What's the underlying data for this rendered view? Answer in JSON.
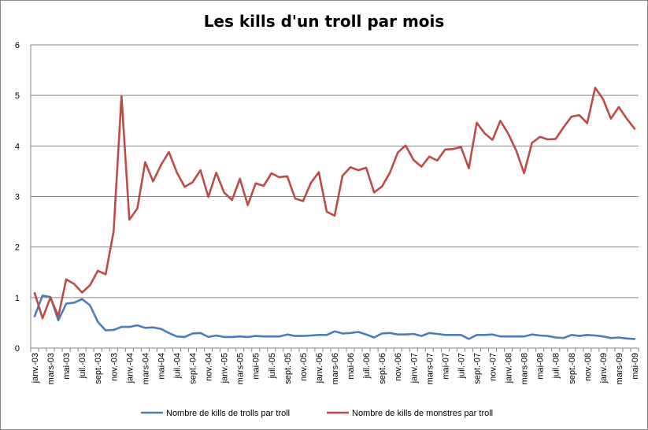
{
  "chart_data": {
    "type": "line",
    "title": "Les kills d'un troll par mois",
    "xlabel": "",
    "ylabel": "",
    "ylim": [
      0,
      6
    ],
    "yticks": [
      0,
      1,
      2,
      3,
      4,
      5,
      6
    ],
    "grid": true,
    "legend_position": "bottom",
    "categories": [
      "janv.-03",
      "févr.-03",
      "mars-03",
      "avr.-03",
      "mai-03",
      "juin-03",
      "juil.-03",
      "août-03",
      "sept.-03",
      "oct.-03",
      "nov.-03",
      "déc.-03",
      "janv.-04",
      "févr.-04",
      "mars-04",
      "avr.-04",
      "mai-04",
      "juin-04",
      "juil.-04",
      "août-04",
      "sept.-04",
      "oct.-04",
      "nov.-04",
      "déc.-04",
      "janv.-05",
      "févr.-05",
      "mars-05",
      "avr.-05",
      "mai-05",
      "juin-05",
      "juil.-05",
      "août-05",
      "sept.-05",
      "oct.-05",
      "nov.-05",
      "déc.-05",
      "janv.-06",
      "févr.-06",
      "mars-06",
      "avr.-06",
      "mai-06",
      "juin-06",
      "juil.-06",
      "août-06",
      "sept.-06",
      "oct.-06",
      "nov.-06",
      "déc.-06",
      "janv.-07",
      "févr.-07",
      "mars-07",
      "avr.-07",
      "mai-07",
      "juin-07",
      "juil.-07",
      "août-07",
      "sept.-07",
      "oct.-07",
      "nov.-07",
      "déc.-07",
      "janv.-08",
      "févr.-08",
      "mars-08",
      "avr.-08",
      "mai-08",
      "juin-08",
      "juil.-08",
      "août-08",
      "sept.-08",
      "oct.-08",
      "nov.-08",
      "déc.-08",
      "janv.-09",
      "févr.-09",
      "mars-09",
      "avr.-09",
      "mai-09"
    ],
    "tick_labels": [
      "janv.-03",
      "mars-03",
      "mai-03",
      "juil.-03",
      "sept.-03",
      "nov.-03",
      "janv.-04",
      "mars-04",
      "mai-04",
      "juil.-04",
      "sept.-04",
      "nov.-04",
      "janv.-05",
      "mars-05",
      "mai-05",
      "juil.-05",
      "sept.-05",
      "nov.-05",
      "janv.-06",
      "mars-06",
      "mai-06",
      "juil.-06",
      "sept.-06",
      "nov.-06",
      "janv.-07",
      "mars-07",
      "mai-07",
      "juil.-07",
      "sept.-07",
      "nov.-07",
      "janv.-08",
      "mars-08",
      "mai-08",
      "juil.-08",
      "sept.-08",
      "nov.-08",
      "janv.-09",
      "mars-09",
      "mai-09"
    ],
    "series": [
      {
        "name": "Nombre de kills de trolls par troll",
        "color": "#4a7ebb",
        "values": [
          0.63,
          1.04,
          1.01,
          0.55,
          0.88,
          0.9,
          0.97,
          0.85,
          0.52,
          0.35,
          0.36,
          0.42,
          0.42,
          0.45,
          0.4,
          0.41,
          0.38,
          0.3,
          0.23,
          0.22,
          0.29,
          0.3,
          0.22,
          0.25,
          0.22,
          0.22,
          0.23,
          0.22,
          0.24,
          0.23,
          0.23,
          0.23,
          0.27,
          0.24,
          0.24,
          0.25,
          0.26,
          0.26,
          0.33,
          0.29,
          0.3,
          0.32,
          0.27,
          0.21,
          0.29,
          0.3,
          0.27,
          0.27,
          0.28,
          0.24,
          0.3,
          0.28,
          0.26,
          0.26,
          0.26,
          0.18,
          0.26,
          0.26,
          0.27,
          0.23,
          0.23,
          0.23,
          0.23,
          0.27,
          0.25,
          0.24,
          0.21,
          0.2,
          0.26,
          0.24,
          0.26,
          0.25,
          0.23,
          0.2,
          0.21,
          0.19,
          0.18
        ]
      },
      {
        "name": "Nombre de kills de monstres par troll",
        "color": "#be4b48",
        "values": [
          1.09,
          0.59,
          1.0,
          0.63,
          1.36,
          1.27,
          1.1,
          1.24,
          1.53,
          1.46,
          2.31,
          4.99,
          2.54,
          2.76,
          3.68,
          3.3,
          3.62,
          3.88,
          3.48,
          3.19,
          3.28,
          3.52,
          2.99,
          3.47,
          3.08,
          2.93,
          3.35,
          2.83,
          3.26,
          3.21,
          3.46,
          3.38,
          3.4,
          2.96,
          2.91,
          3.27,
          3.48,
          2.7,
          2.62,
          3.41,
          3.58,
          3.52,
          3.57,
          3.08,
          3.2,
          3.47,
          3.87,
          4.01,
          3.72,
          3.59,
          3.79,
          3.71,
          3.93,
          3.94,
          3.98,
          3.56,
          4.46,
          4.25,
          4.12,
          4.5,
          4.24,
          3.91,
          3.46,
          4.06,
          4.18,
          4.13,
          4.14,
          4.37,
          4.58,
          4.61,
          4.45,
          5.15,
          4.93,
          4.54,
          4.77,
          4.54,
          4.34
        ]
      }
    ]
  }
}
